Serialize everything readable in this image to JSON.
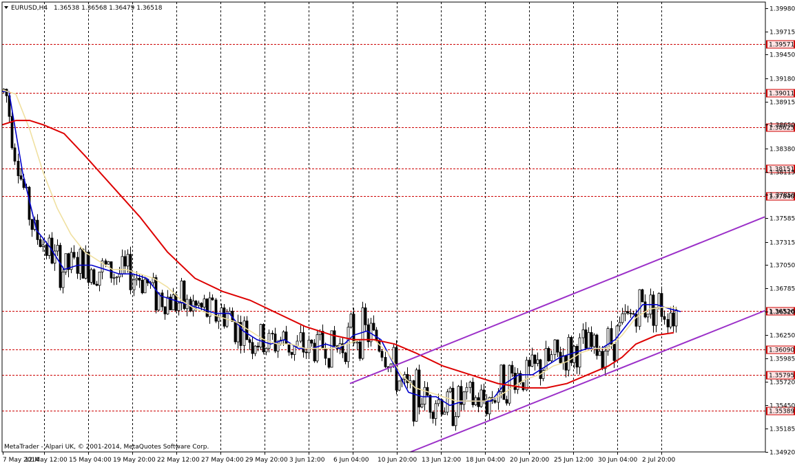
{
  "header": {
    "symbol_label": "EURUSD,H4",
    "ohlc_text": "1.36538 1.36568 1.36479 1.36518"
  },
  "footer": {
    "copyright": "MetaTrader - Alpari UK, © 2001-2014, MetaQuotes Software Corp."
  },
  "colors": {
    "background": "#ffffff",
    "grid": "#000000",
    "level_line": "#cc0000",
    "candle": "#000000",
    "ma_fast": "#0000cc",
    "ma_medium": "#f0e0a0",
    "ma_slow": "#dd0000",
    "channel": "#9b30c8"
  },
  "chart_data": {
    "type": "candlestick",
    "symbol": "EURUSD",
    "timeframe": "H4",
    "ylim": [
      1.3492,
      1.4005
    ],
    "y_ticks": [
      "1.39980",
      "1.39715",
      "1.39450",
      "1.39180",
      "1.38915",
      "1.38650",
      "1.38380",
      "1.38115",
      "1.37850",
      "1.37585",
      "1.37315",
      "1.37050",
      "1.36785",
      "1.36520",
      "1.36250",
      "1.35985",
      "1.35720",
      "1.35450",
      "1.35185",
      "1.34920"
    ],
    "x_ticks": [
      "7 May 2014",
      "12 May 12:00",
      "15 May 04:00",
      "19 May 20:00",
      "22 May 12:00",
      "27 May 04:00",
      "29 May 20:00",
      "3 Jun 12:00",
      "6 Jun 04:00",
      "10 Jun 20:00",
      "13 Jun 12:00",
      "18 Jun 04:00",
      "20 Jun 20:00",
      "25 Jun 12:00",
      "30 Jun 04:00",
      "2 Jul 20:00"
    ],
    "price_levels": [
      "1.39571",
      "1.39011",
      "1.38625",
      "1.38151",
      "1.37840",
      "1.36526",
      "1.36090",
      "1.35795",
      "1.35389"
    ],
    "series": [
      {
        "points": [
          [
            0,
            1.3903
          ],
          [
            10,
            1.3903
          ],
          [
            30,
            1.381
          ],
          [
            50,
            1.3745
          ],
          [
            70,
            1.3725
          ],
          [
            90,
            1.37
          ],
          [
            110,
            1.3705
          ],
          [
            130,
            1.3705
          ],
          [
            150,
            1.37
          ],
          [
            170,
            1.3695
          ],
          [
            190,
            1.3695
          ],
          [
            210,
            1.369
          ],
          [
            230,
            1.367
          ],
          [
            250,
            1.3665
          ],
          [
            270,
            1.366
          ],
          [
            290,
            1.3655
          ],
          [
            310,
            1.365
          ],
          [
            330,
            1.365
          ],
          [
            350,
            1.363
          ],
          [
            370,
            1.362
          ],
          [
            390,
            1.3615
          ],
          [
            410,
            1.362
          ],
          [
            430,
            1.361
          ],
          [
            450,
            1.361
          ],
          [
            470,
            1.3615
          ],
          [
            490,
            1.361
          ],
          [
            510,
            1.3625
          ],
          [
            530,
            1.363
          ],
          [
            550,
            1.362
          ],
          [
            570,
            1.359
          ],
          [
            590,
            1.356
          ],
          [
            610,
            1.3555
          ],
          [
            630,
            1.3555
          ],
          [
            650,
            1.3545
          ],
          [
            670,
            1.355
          ],
          [
            690,
            1.355
          ],
          [
            710,
            1.355
          ],
          [
            730,
            1.357
          ],
          [
            750,
            1.358
          ],
          [
            770,
            1.358
          ],
          [
            790,
            1.359
          ],
          [
            810,
            1.36
          ],
          [
            830,
            1.3605
          ],
          [
            850,
            1.361
          ],
          [
            870,
            1.361
          ],
          [
            890,
            1.362
          ],
          [
            910,
            1.364
          ],
          [
            930,
            1.366
          ],
          [
            950,
            1.366
          ],
          [
            970,
            1.3655
          ],
          [
            985,
            1.3652
          ]
        ]
      },
      {
        "points": [
          [
            0,
            1.3905
          ],
          [
            20,
            1.39
          ],
          [
            40,
            1.386
          ],
          [
            60,
            1.381
          ],
          [
            80,
            1.377
          ],
          [
            100,
            1.374
          ],
          [
            120,
            1.372
          ],
          [
            140,
            1.371
          ],
          [
            160,
            1.37
          ],
          [
            180,
            1.37
          ],
          [
            200,
            1.3695
          ],
          [
            220,
            1.369
          ],
          [
            240,
            1.368
          ],
          [
            260,
            1.3665
          ],
          [
            280,
            1.3655
          ],
          [
            300,
            1.365
          ],
          [
            320,
            1.3645
          ],
          [
            340,
            1.364
          ],
          [
            360,
            1.363
          ],
          [
            380,
            1.362
          ],
          [
            400,
            1.3615
          ],
          [
            420,
            1.3615
          ],
          [
            440,
            1.361
          ],
          [
            460,
            1.361
          ],
          [
            480,
            1.361
          ],
          [
            500,
            1.3615
          ],
          [
            520,
            1.362
          ],
          [
            540,
            1.362
          ],
          [
            560,
            1.3605
          ],
          [
            580,
            1.358
          ],
          [
            600,
            1.3565
          ],
          [
            620,
            1.356
          ],
          [
            640,
            1.3555
          ],
          [
            660,
            1.355
          ],
          [
            680,
            1.355
          ],
          [
            700,
            1.355
          ],
          [
            720,
            1.3555
          ],
          [
            740,
            1.3565
          ],
          [
            760,
            1.3575
          ],
          [
            780,
            1.358
          ],
          [
            800,
            1.359
          ],
          [
            820,
            1.3595
          ],
          [
            840,
            1.3605
          ],
          [
            860,
            1.361
          ],
          [
            880,
            1.361
          ],
          [
            900,
            1.3625
          ],
          [
            920,
            1.3645
          ],
          [
            940,
            1.3655
          ],
          [
            960,
            1.3657
          ],
          [
            980,
            1.3656
          ]
        ]
      },
      {
        "points": [
          [
            0,
            1.3865
          ],
          [
            20,
            1.387
          ],
          [
            40,
            1.387
          ],
          [
            60,
            1.3865
          ],
          [
            90,
            1.3855
          ],
          [
            120,
            1.383
          ],
          [
            160,
            1.3795
          ],
          [
            200,
            1.376
          ],
          [
            240,
            1.372
          ],
          [
            280,
            1.369
          ],
          [
            320,
            1.3675
          ],
          [
            360,
            1.3665
          ],
          [
            400,
            1.365
          ],
          [
            440,
            1.3635
          ],
          [
            480,
            1.3625
          ],
          [
            510,
            1.362
          ],
          [
            540,
            1.362
          ],
          [
            570,
            1.3615
          ],
          [
            600,
            1.3605
          ],
          [
            640,
            1.359
          ],
          [
            680,
            1.358
          ],
          [
            720,
            1.357
          ],
          [
            760,
            1.3565
          ],
          [
            790,
            1.3565
          ],
          [
            820,
            1.357
          ],
          [
            850,
            1.358
          ],
          [
            880,
            1.359
          ],
          [
            900,
            1.36
          ],
          [
            920,
            1.3615
          ],
          [
            950,
            1.3625
          ],
          [
            975,
            1.3628
          ]
        ]
      }
    ],
    "channel_lines": [
      [
        [
          508,
          1.357
        ],
        [
          1110,
          1.376
        ]
      ],
      [
        [
          596,
          1.3492
        ],
        [
          1110,
          1.3653
        ]
      ]
    ],
    "candles": []
  }
}
